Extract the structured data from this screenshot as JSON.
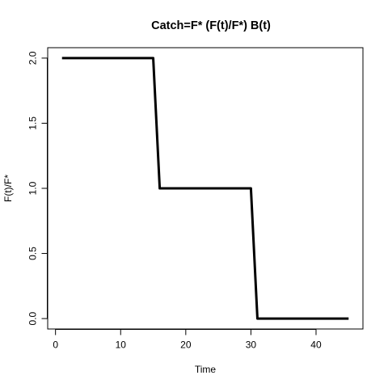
{
  "chart_data": {
    "type": "line",
    "title": "Catch=F* (F(t)/F*) B(t)",
    "xlabel": "Time",
    "ylabel": "F(t)/F*",
    "xlim": [
      -1.2,
      47.2
    ],
    "ylim": [
      -0.08,
      2.08
    ],
    "xticks": [
      0,
      10,
      20,
      30,
      40
    ],
    "xtick_labels": [
      "0",
      "10",
      "20",
      "30",
      "40"
    ],
    "yticks": [
      0.0,
      0.5,
      1.0,
      1.5,
      2.0
    ],
    "ytick_labels": [
      "0.0",
      "0.5",
      "1.0",
      "1.5",
      "2.0"
    ],
    "grid": false,
    "line_color": "#000000",
    "series": [
      {
        "x": [
          1,
          15,
          16,
          30,
          31,
          45
        ],
        "y": [
          2.0,
          2.0,
          1.0,
          1.0,
          0.0,
          0.0
        ]
      }
    ]
  }
}
